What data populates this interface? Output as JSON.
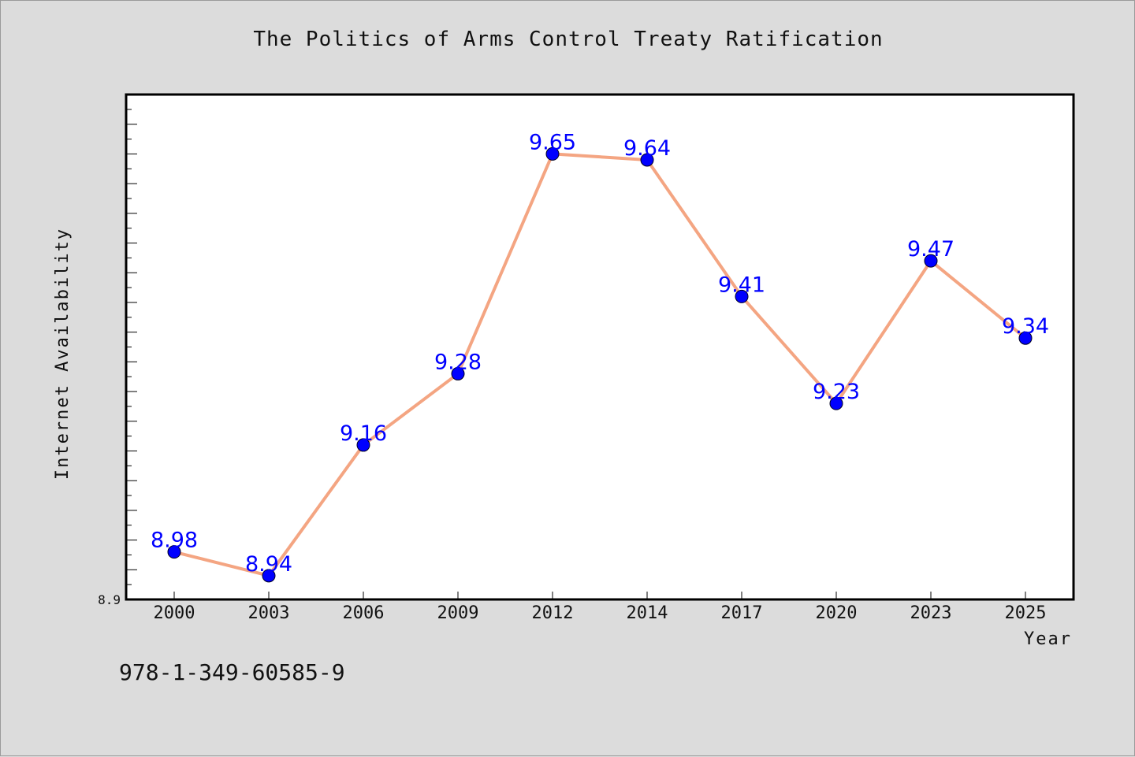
{
  "chart_data": {
    "type": "line",
    "title": "The Politics of Arms Control Treaty Ratification",
    "xlabel": "Year",
    "ylabel": "Internet Availability",
    "categories": [
      "2000",
      "2003",
      "2006",
      "2009",
      "2012",
      "2014",
      "2017",
      "2020",
      "2023",
      "2025"
    ],
    "series": [
      {
        "values": [
          8.98,
          8.94,
          9.16,
          9.28,
          9.65,
          9.64,
          9.41,
          9.23,
          9.47,
          9.34
        ]
      }
    ],
    "ylim": [
      8.9,
      9.75
    ],
    "y_tick_labels": [
      "8.9"
    ],
    "grid": false,
    "line_color": "#f4a582",
    "marker_color": "#0000ff",
    "label_color": "#0000ff"
  },
  "footer": {
    "isbn": "978-1-349-60585-9"
  }
}
